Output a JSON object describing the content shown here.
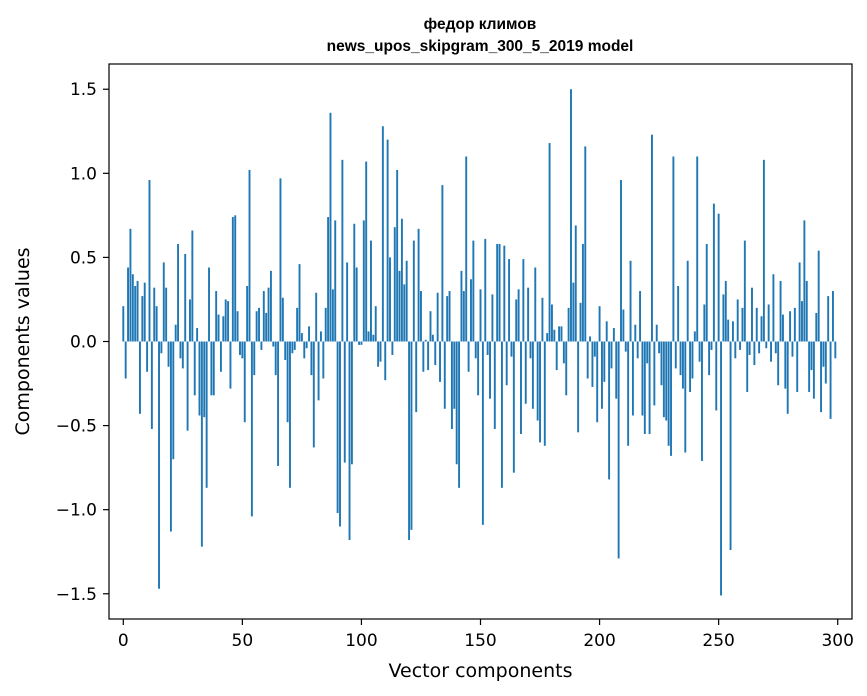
{
  "chart_data": {
    "type": "bar",
    "title_line1": "федор климов",
    "title_line2": "news_upos_skipgram_300_5_2019 model",
    "xlabel": "Vector components",
    "ylabel": "Components values",
    "xlim": [
      -6,
      306
    ],
    "ylim": [
      -1.65,
      1.65
    ],
    "xticks": [
      0,
      50,
      100,
      150,
      200,
      250,
      300
    ],
    "xtick_labels": [
      "0",
      "50",
      "100",
      "150",
      "200",
      "250",
      "300"
    ],
    "yticks": [
      -1.5,
      -1.0,
      -0.5,
      0.0,
      0.5,
      1.0,
      1.5
    ],
    "ytick_labels": [
      "−1.5",
      "−1.0",
      "−0.5",
      "0.0",
      "0.5",
      "1.0",
      "1.5"
    ],
    "bar_color": "#1f77b4",
    "grid": false,
    "values": [
      0.21,
      -0.22,
      0.44,
      0.67,
      0.4,
      0.33,
      0.36,
      -0.43,
      0.27,
      0.35,
      -0.18,
      0.96,
      -0.52,
      0.32,
      0.21,
      -1.47,
      -0.07,
      0.47,
      0.32,
      -0.15,
      -1.13,
      -0.7,
      0.1,
      0.58,
      -0.1,
      -0.16,
      0.52,
      -0.53,
      0.25,
      0.66,
      -0.32,
      0.08,
      -0.44,
      -1.22,
      -0.45,
      -0.87,
      0.44,
      -0.32,
      -0.32,
      0.3,
      0.16,
      -0.18,
      0.15,
      0.25,
      0.24,
      -0.28,
      0.74,
      0.75,
      0.18,
      -0.08,
      -0.1,
      -0.48,
      0.33,
      1.02,
      -1.04,
      -0.2,
      0.18,
      0.2,
      -0.05,
      0.3,
      0.17,
      0.32,
      0.42,
      -0.03,
      -0.2,
      -0.74,
      0.97,
      0.26,
      -0.11,
      -0.48,
      -0.87,
      -0.07,
      -0.05,
      0.2,
      0.46,
      0.05,
      -0.1,
      -0.04,
      0.09,
      -0.2,
      -0.63,
      0.29,
      -0.35,
      0.06,
      -0.22,
      0.2,
      0.74,
      1.36,
      0.31,
      0.72,
      -1.02,
      -1.1,
      1.08,
      -0.72,
      0.47,
      -1.18,
      -0.73,
      0.7,
      0.44,
      -0.02,
      -0.02,
      0.72,
      1.07,
      0.06,
      0.6,
      0.04,
      0.21,
      -0.15,
      -0.12,
      1.28,
      -0.23,
      1.2,
      0.5,
      -0.08,
      0.68,
      1.02,
      0.42,
      0.73,
      0.34,
      0.48,
      -1.18,
      -1.12,
      0.6,
      -0.42,
      0.67,
      0.3,
      -0.18,
      0.01,
      -0.17,
      0.18,
      0.04,
      -0.14,
      0.29,
      -0.24,
      0.93,
      -0.4,
      0.27,
      0.3,
      -0.52,
      -0.4,
      -0.73,
      -0.87,
      0.42,
      0.3,
      1.1,
      -0.18,
      0.37,
      0.6,
      -0.1,
      -0.32,
      0.31,
      -1.09,
      0.61,
      -0.08,
      -0.34,
      0.28,
      -0.52,
      0.58,
      0.58,
      -0.87,
      0.57,
      -0.26,
      0.49,
      -0.09,
      -0.78,
      0.25,
      0.31,
      -0.55,
      0.49,
      -0.37,
      0.32,
      -0.1,
      -0.4,
      0.44,
      -0.47,
      -0.6,
      0.26,
      -0.62,
      0.05,
      1.18,
      0.22,
      0.07,
      -0.17,
      0.09,
      0.09,
      -0.13,
      -0.32,
      0.2,
      1.5,
      0.35,
      0.69,
      -0.54,
      0.23,
      0.58,
      1.16,
      -0.22,
      0.03,
      -0.27,
      -0.09,
      -0.48,
      0.21,
      -0.4,
      -0.24,
      0.12,
      -0.82,
      -0.16,
      0.08,
      -0.34,
      -1.29,
      0.96,
      0.19,
      -0.06,
      -0.62,
      0.48,
      -0.44,
      0.1,
      -0.1,
      0.3,
      -0.44,
      -0.55,
      -0.13,
      -0.55,
      1.23,
      -0.38,
      0.1,
      -0.07,
      -0.26,
      -0.45,
      -0.47,
      -0.62,
      -0.68,
      1.1,
      -0.16,
      0.33,
      -0.2,
      -0.28,
      -0.66,
      0.48,
      -0.3,
      -0.22,
      0.06,
      1.1,
      -0.12,
      -0.71,
      0.22,
      0.58,
      -0.2,
      -0.05,
      0.82,
      -0.41,
      0.76,
      -1.51,
      0.28,
      0.36,
      0.13,
      -1.24,
      0.12,
      -0.1,
      0.25,
      -0.05,
      0.2,
      0.6,
      -0.3,
      -0.08,
      0.32,
      -0.14,
      0.2,
      -0.07,
      0.15,
      1.08,
      -0.04,
      0.22,
      -0.12,
      0.4,
      -0.07,
      -0.26,
      0.36,
      0.16,
      -0.28,
      -0.43,
      0.18,
      -0.09,
      0.2,
      -0.3,
      0.47,
      0.24,
      0.72,
      0.36,
      -0.3,
      -0.17,
      -0.34,
      0.17,
      0.54,
      -0.42,
      -0.15,
      -0.25,
      0.27,
      -0.46,
      0.3,
      -0.1
    ]
  }
}
